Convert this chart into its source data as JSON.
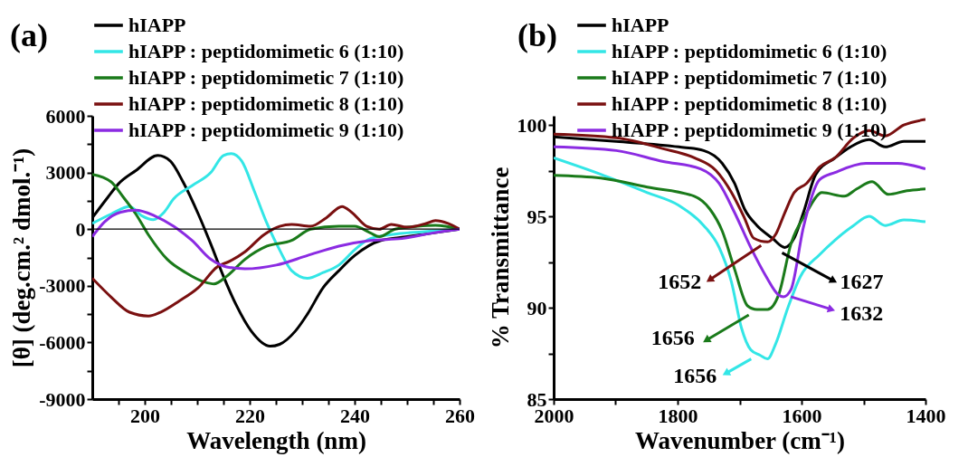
{
  "chart_data": [
    {
      "type": "line",
      "title": "(a)",
      "xlabel": "Wavelength (nm)",
      "ylabel": "[θ] (deg.cm.² dmol.⁻¹)",
      "xlim": [
        190,
        260
      ],
      "xticks": [
        {
          "value": 195,
          "label": null
        },
        200,
        {
          "value": 205,
          "label": null
        },
        {
          "value": 210,
          "label": null
        },
        {
          "value": 215,
          "label": null
        },
        220,
        {
          "value": 225,
          "label": null
        },
        {
          "value": 230,
          "label": null
        },
        {
          "value": 235,
          "label": null
        },
        240,
        {
          "value": 245,
          "label": null
        },
        {
          "value": 250,
          "label": null
        },
        {
          "value": 255,
          "label": null
        },
        260
      ],
      "ylim": [
        -9000,
        6000
      ],
      "yticks": [
        -9000,
        {
          "value": -7500,
          "label": null
        },
        -6000,
        {
          "value": -4500,
          "label": null
        },
        -3000,
        {
          "value": -1500,
          "label": null
        },
        0,
        {
          "value": 1500,
          "label": null
        },
        3000,
        {
          "value": 4500,
          "label": null
        },
        6000
      ],
      "legend": "top",
      "grid": false,
      "ref_lines": [
        {
          "axis": "y",
          "value": 0,
          "color": "#000000"
        }
      ],
      "series": [
        {
          "name": "hIAPP",
          "color": "#000000",
          "x": [
            190,
            193,
            195,
            198.3,
            202.5,
            204.9,
            207.3,
            210.2,
            212.6,
            215,
            217.4,
            220.3,
            223.9,
            225.7,
            228.7,
            231,
            234,
            237,
            240,
            245,
            250,
            255,
            260
          ],
          "values": [
            600,
            1700,
            2400,
            3100,
            3900,
            3600,
            2500,
            800,
            -800,
            -2500,
            -4000,
            -5400,
            -6200,
            -6100,
            -5400,
            -4500,
            -3100,
            -2200,
            -1400,
            -600,
            -400,
            -200,
            0
          ]
        },
        {
          "name": "hIAPP : peptidomimetic 6 (1:10)",
          "color": "#33e6e6",
          "x": [
            190,
            193.6,
            197.1,
            199.5,
            201.6,
            203.7,
            205.5,
            209,
            212.6,
            215,
            216.5,
            218.5,
            220.9,
            223.3,
            225.7,
            228,
            231,
            234,
            237,
            240,
            243,
            250,
            255,
            260
          ],
          "values": [
            300,
            800,
            1200,
            700,
            500,
            900,
            1600,
            2300,
            3000,
            3900,
            4000,
            3600,
            2000,
            300,
            -1100,
            -2200,
            -2600,
            -2300,
            -1900,
            -1100,
            -500,
            -200,
            -100,
            0
          ]
        },
        {
          "name": "hIAPP : peptidomimetic 7 (1:10)",
          "color": "#1a7a1a",
          "x": [
            190,
            193.6,
            195.9,
            198.3,
            200.7,
            204.3,
            207.8,
            211.4,
            213.2,
            215.6,
            219.1,
            223.3,
            228,
            231.6,
            237,
            240,
            243,
            244.7,
            247.7,
            252,
            255.4,
            260
          ],
          "values": [
            2900,
            2500,
            1700,
            800,
            -300,
            -1600,
            -2300,
            -2800,
            -2900,
            -2500,
            -1600,
            -900,
            -600,
            0,
            150,
            150,
            -200,
            -400,
            0,
            150,
            200,
            0
          ]
        },
        {
          "name": "hIAPP : peptidomimetic 8 (1:10)",
          "color": "#7a1010",
          "x": [
            190,
            193.6,
            197.1,
            200.7,
            203,
            206.6,
            210.2,
            213.8,
            216.2,
            219.1,
            222.7,
            225.7,
            228,
            231.6,
            234.6,
            237.6,
            239.4,
            242.3,
            244.7,
            247,
            250,
            253.6,
            255.4,
            257.8,
            260
          ],
          "values": [
            -2600,
            -3600,
            -4400,
            -4600,
            -4400,
            -3800,
            -3100,
            -2000,
            -1700,
            -1200,
            -300,
            150,
            250,
            150,
            600,
            1200,
            900,
            150,
            0,
            250,
            100,
            300,
            450,
            300,
            0
          ]
        },
        {
          "name": "hIAPP : peptidomimetic 9 (1:10)",
          "color": "#8b2be2",
          "x": [
            190,
            192.4,
            195.4,
            198.3,
            201.9,
            205.5,
            209,
            212.6,
            215.6,
            219.1,
            225.1,
            231,
            237,
            243,
            249,
            255,
            260
          ],
          "values": [
            -400,
            400,
            900,
            1000,
            700,
            150,
            -600,
            -1600,
            -2000,
            -2100,
            -1900,
            -1400,
            -900,
            -600,
            -500,
            -200,
            0
          ]
        }
      ]
    },
    {
      "type": "line",
      "title": "(b)",
      "xlabel": "Wavenumber (cm⁻¹)",
      "ylabel": "% Transmittance",
      "xlim": [
        2000,
        1400
      ],
      "xticks": [
        2000,
        {
          "value": 1900,
          "label": null
        },
        1800,
        {
          "value": 1700,
          "label": null
        },
        1600,
        {
          "value": 1500,
          "label": null
        },
        1400
      ],
      "ylim": [
        85,
        100.5
      ],
      "yticks": [
        85,
        {
          "value": 87.5,
          "label": null
        },
        90,
        {
          "value": 92.5,
          "label": null
        },
        95,
        {
          "value": 97.5,
          "label": null
        },
        100
      ],
      "legend": "top",
      "grid": false,
      "annotations": [
        {
          "text": "1652",
          "x": 1655,
          "y": 93.6
        },
        {
          "text": "1627",
          "x": 1627,
          "y": 93.3
        },
        {
          "text": "1632",
          "x": 1629,
          "y": 90.6
        },
        {
          "text": "1656",
          "x": 1672,
          "y": 89.9
        },
        {
          "text": "1656",
          "x": 1655,
          "y": 87.2
        }
      ],
      "series": [
        {
          "name": "hIAPP",
          "color": "#000000",
          "x": [
            2000,
            1899,
            1798,
            1758,
            1728,
            1708,
            1692,
            1672,
            1647,
            1627,
            1612,
            1597,
            1577,
            1546,
            1521,
            1491,
            1465,
            1435,
            1400
          ],
          "values": [
            99.35,
            99.1,
            98.8,
            98.6,
            97.9,
            96.8,
            95.4,
            94.5,
            93.8,
            93.3,
            93.8,
            95.2,
            97.3,
            98.2,
            98.8,
            99.2,
            98.8,
            99.1,
            99.1
          ]
        },
        {
          "name": "hIAPP : peptidomimetic 6 (1:10)",
          "color": "#33e6e6",
          "x": [
            2000,
            1924,
            1849,
            1798,
            1758,
            1733,
            1713,
            1697,
            1682,
            1667,
            1655,
            1642,
            1622,
            1602,
            1571,
            1546,
            1516,
            1491,
            1465,
            1435,
            1400
          ],
          "values": [
            98.2,
            97.3,
            96.3,
            95.6,
            94.5,
            93.3,
            91.4,
            88.9,
            87.7,
            87.4,
            87.2,
            88.0,
            90.0,
            91.7,
            92.9,
            93.7,
            94.5,
            95.0,
            94.5,
            94.8,
            94.7
          ]
        },
        {
          "name": "hIAPP : peptidomimetic 7 (1:10)",
          "color": "#1a7a1a",
          "x": [
            2000,
            1924,
            1849,
            1773,
            1748,
            1728,
            1708,
            1687,
            1672,
            1655,
            1637,
            1617,
            1592,
            1567,
            1531,
            1511,
            1486,
            1460,
            1430,
            1400
          ],
          "values": [
            97.25,
            97.1,
            96.6,
            96.1,
            95.4,
            94.2,
            92.1,
            90.1,
            89.9,
            89.9,
            90.7,
            93.5,
            95.2,
            96.3,
            96.1,
            96.5,
            96.9,
            96.2,
            96.4,
            96.5
          ]
        },
        {
          "name": "hIAPP : peptidomimetic 8 (1:10)",
          "color": "#7a1010",
          "x": [
            2000,
            1899,
            1823,
            1773,
            1738,
            1713,
            1692,
            1677,
            1655,
            1642,
            1627,
            1612,
            1592,
            1571,
            1546,
            1516,
            1491,
            1465,
            1435,
            1400
          ],
          "values": [
            99.5,
            99.3,
            98.7,
            98.2,
            97.5,
            96.3,
            94.9,
            93.8,
            93.6,
            94.0,
            95.2,
            96.3,
            96.8,
            97.7,
            98.2,
            99.3,
            99.7,
            99.4,
            100.0,
            100.3
          ]
        },
        {
          "name": "hIAPP : peptidomimetic 9 (1:10)",
          "color": "#8b2be2",
          "x": [
            2000,
            1899,
            1823,
            1763,
            1733,
            1708,
            1682,
            1657,
            1637,
            1629,
            1617,
            1597,
            1571,
            1546,
            1496,
            1445,
            1400
          ],
          "values": [
            98.8,
            98.6,
            98.0,
            97.6,
            96.8,
            95.2,
            93.3,
            91.7,
            90.7,
            90.6,
            91.0,
            94.4,
            97.0,
            97.4,
            97.9,
            97.9,
            97.6
          ]
        }
      ]
    }
  ]
}
